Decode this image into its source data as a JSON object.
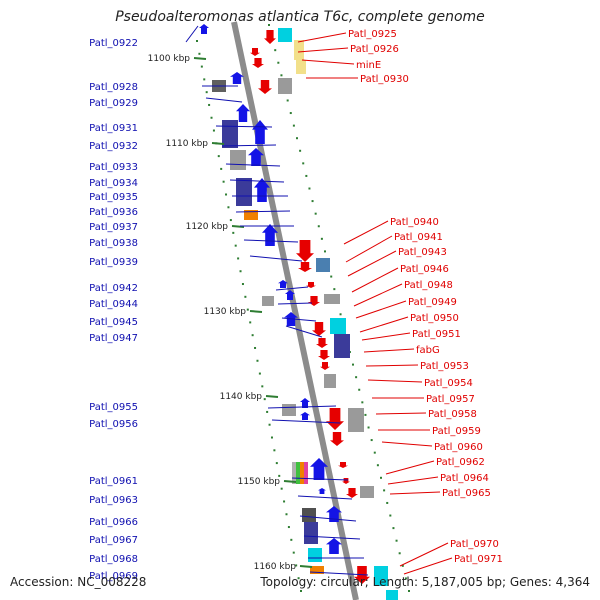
{
  "title": "Pseudoalteromonas atlantica T6c, complete genome",
  "accession": "Accession: NC_008228",
  "summary": "Topology: circular; Length: 5,187,005 bp; Genes: 4,364",
  "colors": {
    "backbone": "#8c8c8c",
    "tick": "#2e7d32",
    "left_label": "#1010b0",
    "right_label": "#e00000",
    "forward_gene": "#1414e6",
    "reverse_gene": "#e60000",
    "cog_purple": "#3b3b9a",
    "cog_gray": "#9a9a9a",
    "cog_cyan": "#00d0e0",
    "cog_yellow": "#f2e08a",
    "cog_orange": "#f08000",
    "cog_steel": "#4a7fb0"
  },
  "kbp_marks": [
    "1100 kbp",
    "1110 kbp",
    "1120 kbp",
    "1130 kbp",
    "1140 kbp",
    "1150 kbp",
    "1160 kbp"
  ],
  "left_labels": [
    "Patl_0922",
    "Patl_0928",
    "Patl_0929",
    "Patl_0931",
    "Patl_0932",
    "Patl_0933",
    "Patl_0934",
    "Patl_0935",
    "Patl_0936",
    "Patl_0937",
    "Patl_0938",
    "Patl_0939",
    "Patl_0942",
    "Patl_0944",
    "Patl_0945",
    "Patl_0947",
    "Patl_0955",
    "Patl_0956",
    "Patl_0961",
    "Patl_0963",
    "Patl_0966",
    "Patl_0967",
    "Patl_0968",
    "Patl_0969"
  ],
  "right_labels": [
    "Patl_0925",
    "Patl_0926",
    "minE",
    "Patl_0930",
    "Patl_0940",
    "Patl_0941",
    "Patl_0943",
    "Patl_0946",
    "Patl_0948",
    "Patl_0949",
    "Patl_0950",
    "Patl_0951",
    "fabG",
    "Patl_0953",
    "Patl_0954",
    "Patl_0957",
    "Patl_0958",
    "Patl_0959",
    "Patl_0960",
    "Patl_0962",
    "Patl_0964",
    "Patl_0965",
    "Patl_0970",
    "Patl_0971"
  ]
}
